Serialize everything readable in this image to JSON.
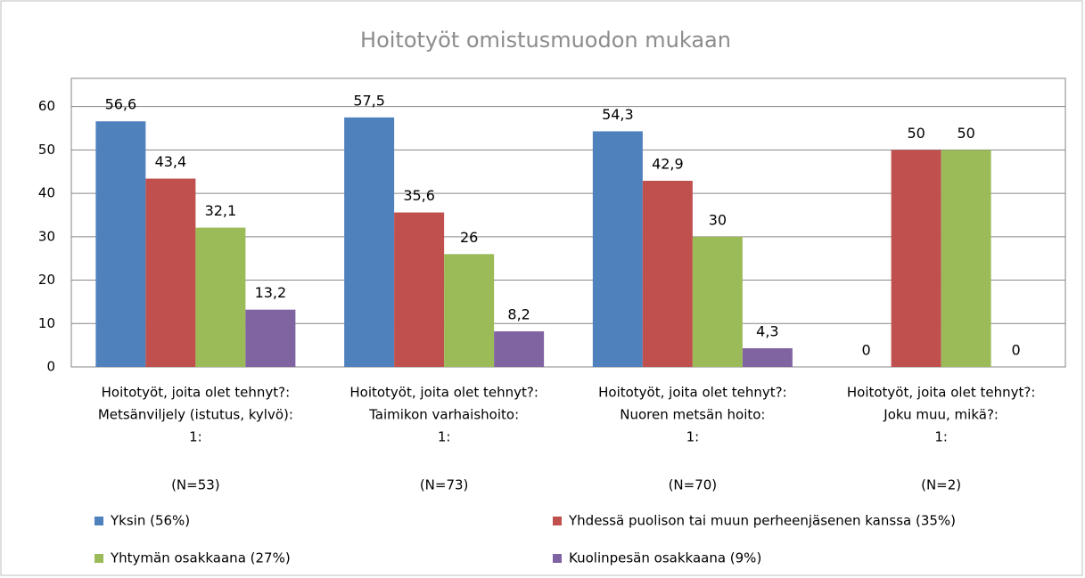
{
  "chart_data": {
    "type": "bar",
    "title": "Hoitotyöt omistusmuodon mukaan",
    "categories": [
      [
        "Hoitotyöt, joita olet tehnyt?:",
        "Metsänviljely (istutus, kylvö):",
        "1:",
        "(N=53)"
      ],
      [
        "Hoitotyöt, joita olet tehnyt?:",
        "Taimikon varhaishoito:",
        "1:",
        "(N=73)"
      ],
      [
        "Hoitotyöt, joita olet tehnyt?:",
        "Nuoren metsän hoito:",
        "1:",
        "(N=70)"
      ],
      [
        "Hoitotyöt, joita olet tehnyt?:",
        "Joku muu, mikä?:",
        "1:",
        "(N=2)"
      ]
    ],
    "series": [
      {
        "name": "Yksin (56%)",
        "color": "#4f81bd",
        "values": [
          56.6,
          57.5,
          54.3,
          0
        ],
        "value_labels": [
          "56,6",
          "57,5",
          "54,3",
          "0"
        ]
      },
      {
        "name": "Yhdessä puolison tai muun perheenjäsenen kanssa (35%)",
        "color": "#c0504d",
        "values": [
          43.4,
          35.6,
          42.9,
          50
        ],
        "value_labels": [
          "43,4",
          "35,6",
          "42,9",
          "50"
        ]
      },
      {
        "name": "Yhtymän osakkaana (27%)",
        "color": "#9bbb59",
        "values": [
          32.1,
          26,
          30,
          50
        ],
        "value_labels": [
          "32,1",
          "26",
          "30",
          "50"
        ]
      },
      {
        "name": "Kuolinpesän osakkaana (9%)",
        "color": "#8064a2",
        "values": [
          13.2,
          8.2,
          4.3,
          0
        ],
        "value_labels": [
          "13,2",
          "8,2",
          "4,3",
          "0"
        ]
      }
    ],
    "ylim": [
      0,
      66.5
    ],
    "yticks": [
      0,
      10,
      20,
      30,
      40,
      50,
      60
    ],
    "grid": true,
    "legend": "bottom"
  }
}
